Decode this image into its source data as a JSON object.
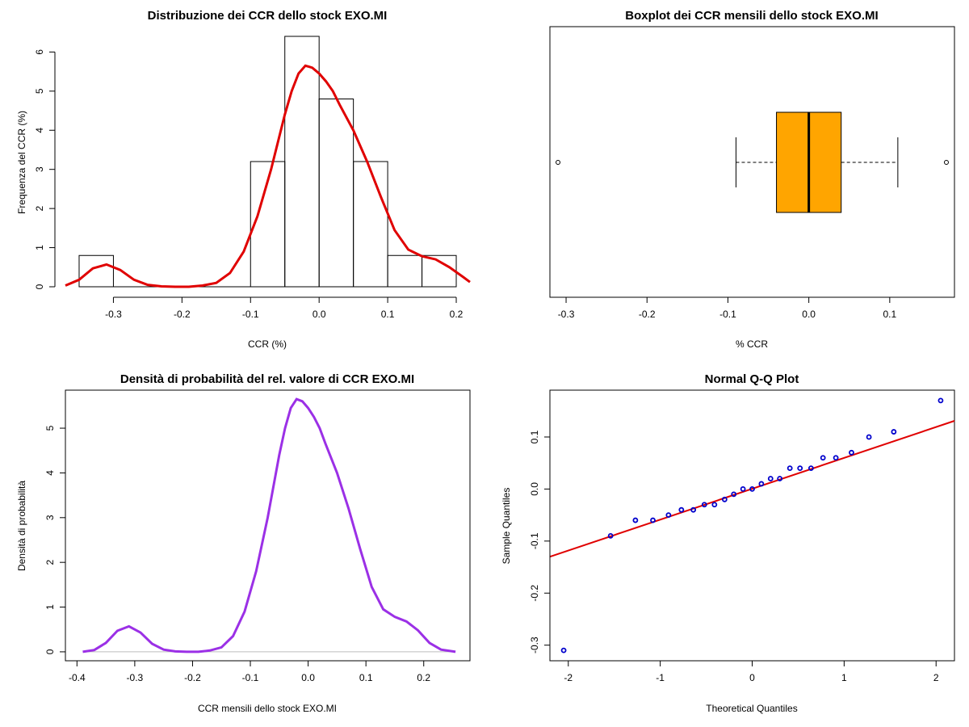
{
  "colors": {
    "kde_line": "#e00000",
    "density_line": "#9b30e6",
    "box_fill": "#ffa500",
    "qq_points": "#0000cc",
    "qq_line": "#e00000",
    "baseline": "#bebebe"
  },
  "chart_data": [
    {
      "type": "histogram",
      "title": "Distribuzione dei CCR dello stock EXO.MI",
      "xlabel": "CCR (%)",
      "ylabel": "Frequenza del CCR (%)",
      "xlim": [
        -0.37,
        0.22
      ],
      "ylim": [
        0,
        6.4
      ],
      "xticks": [
        -0.3,
        -0.2,
        -0.1,
        0.0,
        0.1,
        0.2
      ],
      "xtick_labels": [
        "-0.3",
        "-0.2",
        "-0.1",
        "0.0",
        "0.1",
        "0.2"
      ],
      "yticks": [
        0,
        1,
        2,
        3,
        4,
        5,
        6
      ],
      "ytick_labels": [
        "0",
        "1",
        "2",
        "3",
        "4",
        "5",
        "6"
      ],
      "bins": [
        {
          "from": -0.35,
          "to": -0.3,
          "height": 0.8
        },
        {
          "from": -0.3,
          "to": -0.25,
          "height": 0
        },
        {
          "from": -0.25,
          "to": -0.2,
          "height": 0
        },
        {
          "from": -0.2,
          "to": -0.15,
          "height": 0
        },
        {
          "from": -0.15,
          "to": -0.1,
          "height": 0
        },
        {
          "from": -0.1,
          "to": -0.05,
          "height": 3.2
        },
        {
          "from": -0.05,
          "to": 0.0,
          "height": 6.4
        },
        {
          "from": 0.0,
          "to": 0.05,
          "height": 4.8
        },
        {
          "from": 0.05,
          "to": 0.1,
          "height": 3.2
        },
        {
          "from": 0.1,
          "to": 0.15,
          "height": 0.8
        },
        {
          "from": 0.15,
          "to": 0.2,
          "height": 0.8
        }
      ],
      "kde": {
        "x": [
          -0.37,
          -0.35,
          -0.33,
          -0.31,
          -0.29,
          -0.27,
          -0.25,
          -0.23,
          -0.21,
          -0.19,
          -0.17,
          -0.15,
          -0.13,
          -0.11,
          -0.09,
          -0.07,
          -0.05,
          -0.04,
          -0.03,
          -0.02,
          -0.01,
          0.0,
          0.01,
          0.02,
          0.03,
          0.05,
          0.07,
          0.09,
          0.11,
          0.13,
          0.15,
          0.17,
          0.19,
          0.21,
          0.22
        ],
        "y": [
          0.03,
          0.18,
          0.47,
          0.57,
          0.43,
          0.18,
          0.05,
          0.01,
          0.0,
          0.0,
          0.03,
          0.1,
          0.35,
          0.9,
          1.8,
          3.0,
          4.4,
          5.0,
          5.45,
          5.65,
          5.6,
          5.45,
          5.25,
          5.0,
          4.65,
          4.0,
          3.2,
          2.3,
          1.45,
          0.95,
          0.78,
          0.7,
          0.5,
          0.25,
          0.12
        ]
      }
    },
    {
      "type": "boxplot",
      "title": "Boxplot dei CCR mensili dello stock EXO.MI",
      "xlabel": "% CCR",
      "xlim": [
        -0.32,
        0.18
      ],
      "xticks": [
        -0.3,
        -0.2,
        -0.1,
        0.0,
        0.1
      ],
      "xtick_labels": [
        "-0.3",
        "-0.2",
        "-0.1",
        "0.0",
        "0.1"
      ],
      "whisker_low": -0.09,
      "q1": -0.04,
      "median": 0.0,
      "q3": 0.04,
      "whisker_high": 0.11,
      "outliers": [
        -0.31,
        0.17
      ]
    },
    {
      "type": "line",
      "title": "Densità di probabilità del rel. valore di CCR EXO.MI",
      "xlabel": "CCR mensili dello stock EXO.MI",
      "ylabel": "Densità di probabilità",
      "xlim": [
        -0.42,
        0.28
      ],
      "ylim": [
        -0.2,
        5.85
      ],
      "xticks": [
        -0.4,
        -0.3,
        -0.2,
        -0.1,
        0.0,
        0.1,
        0.2
      ],
      "xtick_labels": [
        "-0.4",
        "-0.3",
        "-0.2",
        "-0.1",
        "0.0",
        "0.1",
        "0.2"
      ],
      "yticks": [
        0,
        1,
        2,
        3,
        4,
        5
      ],
      "ytick_labels": [
        "0",
        "1",
        "2",
        "3",
        "4",
        "5"
      ],
      "series": [
        {
          "x": [
            -0.39,
            -0.37,
            -0.35,
            -0.33,
            -0.31,
            -0.29,
            -0.27,
            -0.25,
            -0.23,
            -0.21,
            -0.19,
            -0.17,
            -0.15,
            -0.13,
            -0.11,
            -0.09,
            -0.07,
            -0.05,
            -0.04,
            -0.03,
            -0.02,
            -0.01,
            0.0,
            0.01,
            0.02,
            0.03,
            0.05,
            0.07,
            0.09,
            0.11,
            0.13,
            0.15,
            0.17,
            0.19,
            0.21,
            0.23,
            0.255
          ],
          "y": [
            0.0,
            0.04,
            0.2,
            0.47,
            0.57,
            0.43,
            0.18,
            0.05,
            0.01,
            0.0,
            0.0,
            0.03,
            0.1,
            0.35,
            0.9,
            1.8,
            3.0,
            4.4,
            5.0,
            5.45,
            5.65,
            5.6,
            5.45,
            5.25,
            5.0,
            4.65,
            4.0,
            3.2,
            2.3,
            1.45,
            0.95,
            0.78,
            0.68,
            0.48,
            0.2,
            0.05,
            0.0
          ]
        }
      ]
    },
    {
      "type": "scatter",
      "title": "Normal Q-Q Plot",
      "xlabel": "Theoretical Quantiles",
      "ylabel": "Sample Quantiles",
      "xlim": [
        -2.2,
        2.2
      ],
      "ylim": [
        -0.33,
        0.19
      ],
      "xticks": [
        -2,
        -1,
        0,
        1,
        2
      ],
      "xtick_labels": [
        "-2",
        "-1",
        "0",
        "1",
        "2"
      ],
      "yticks": [
        -0.3,
        -0.2,
        -0.1,
        0.0,
        0.1
      ],
      "ytick_labels": [
        "-0.3",
        "-0.2",
        "-0.1",
        "0.0",
        "0.1"
      ],
      "points": {
        "x": [
          -2.05,
          -1.54,
          -1.27,
          -1.08,
          -0.91,
          -0.77,
          -0.64,
          -0.52,
          -0.41,
          -0.3,
          -0.2,
          -0.1,
          0.0,
          0.1,
          0.2,
          0.3,
          0.41,
          0.52,
          0.64,
          0.77,
          0.91,
          1.08,
          1.27,
          1.54,
          2.05
        ],
        "y": [
          -0.31,
          -0.09,
          -0.06,
          -0.06,
          -0.05,
          -0.04,
          -0.04,
          -0.03,
          -0.03,
          -0.02,
          -0.01,
          0.0,
          0.0,
          0.01,
          0.02,
          0.02,
          0.04,
          0.04,
          0.04,
          0.06,
          0.06,
          0.07,
          0.1,
          0.11,
          0.17
        ]
      },
      "reference_line": {
        "x": [
          -2.2,
          2.2
        ],
        "y": [
          -0.13,
          0.131
        ]
      }
    }
  ]
}
